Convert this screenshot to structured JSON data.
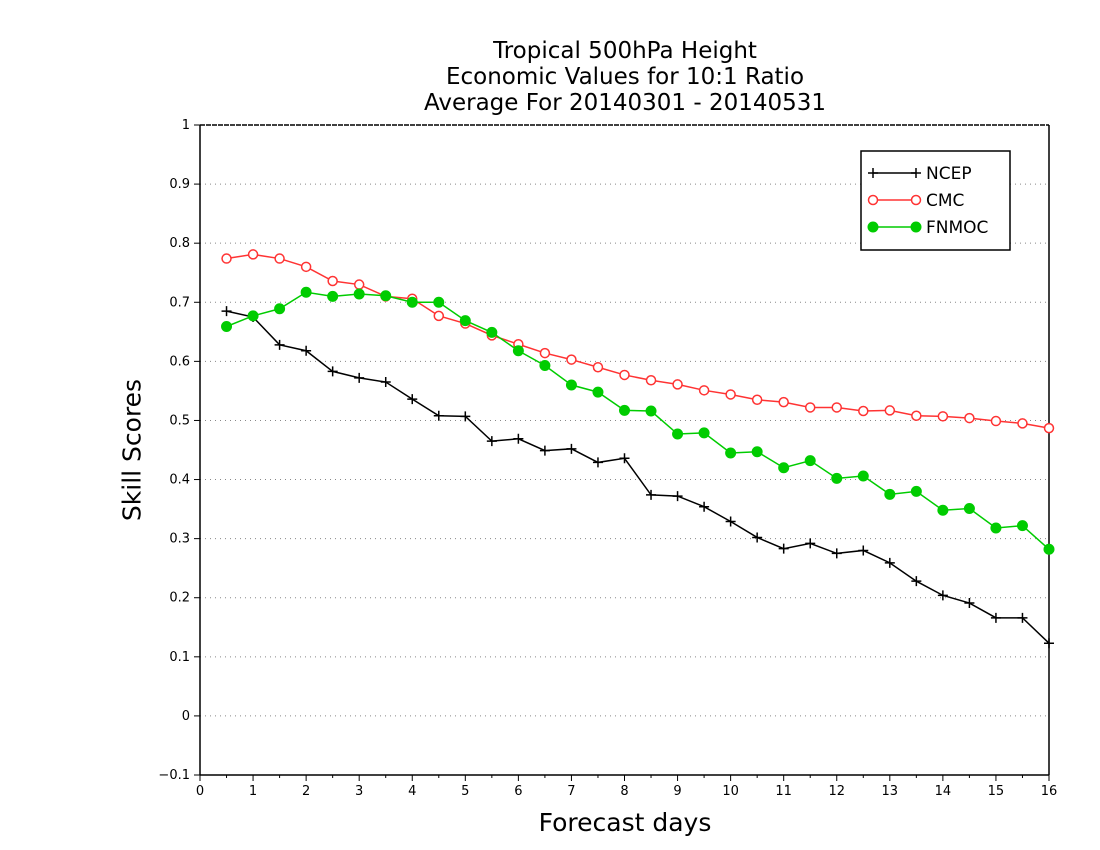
{
  "chart_data": {
    "type": "line",
    "title_lines": [
      "Tropical 500hPa Height",
      "Economic Values for 10:1 Ratio",
      "Average For 20140301 - 20140531"
    ],
    "xlabel": "Forecast days",
    "ylabel": "Skill Scores",
    "xlim": [
      0,
      16
    ],
    "ylim": [
      -0.1,
      1
    ],
    "xticks": [
      "0",
      "1",
      "2",
      "3",
      "4",
      "5",
      "6",
      "7",
      "8",
      "9",
      "10",
      "11",
      "12",
      "13",
      "14",
      "15",
      "16"
    ],
    "yticks": [
      "-0.1",
      "0",
      "0.1",
      "0.2",
      "0.3",
      "0.4",
      "0.5",
      "0.6",
      "0.7",
      "0.8",
      "0.9",
      "1"
    ],
    "grid": "horizontal dotted",
    "legend_position": "top-right",
    "x": [
      0.5,
      1,
      1.5,
      2,
      2.5,
      3,
      3.5,
      4,
      4.5,
      5,
      5.5,
      6,
      6.5,
      7,
      7.5,
      8,
      8.5,
      9,
      9.5,
      10,
      10.5,
      11,
      11.5,
      12,
      12.5,
      13,
      13.5,
      14,
      14.5,
      15,
      15.5,
      16
    ],
    "series": [
      {
        "name": "NCEP",
        "color": "#000000",
        "marker": "plus",
        "values": [
          0.685,
          0.675,
          0.628,
          0.618,
          0.583,
          0.572,
          0.565,
          0.536,
          0.508,
          0.507,
          0.465,
          0.469,
          0.449,
          0.452,
          0.429,
          0.436,
          0.374,
          0.372,
          0.354,
          0.329,
          0.302,
          0.283,
          0.292,
          0.275,
          0.28,
          0.259,
          0.228,
          0.204,
          0.191,
          0.166,
          0.166,
          0.123
        ]
      },
      {
        "name": "CMC",
        "color": "#ff3333",
        "marker": "open-circle",
        "values": [
          0.774,
          0.781,
          0.774,
          0.76,
          0.736,
          0.73,
          0.71,
          0.706,
          0.677,
          0.664,
          0.644,
          0.629,
          0.614,
          0.603,
          0.59,
          0.577,
          0.568,
          0.561,
          0.551,
          0.544,
          0.535,
          0.531,
          0.522,
          0.522,
          0.516,
          0.517,
          0.508,
          0.507,
          0.504,
          0.499,
          0.495,
          0.487
        ]
      },
      {
        "name": "FNMOC",
        "color": "#00cc00",
        "marker": "filled-circle",
        "values": [
          0.659,
          0.677,
          0.689,
          0.717,
          0.71,
          0.714,
          0.711,
          0.7,
          0.7,
          0.669,
          0.649,
          0.618,
          0.593,
          0.56,
          0.548,
          0.517,
          0.516,
          0.477,
          0.479,
          0.445,
          0.447,
          0.42,
          0.432,
          0.402,
          0.406,
          0.375,
          0.38,
          0.348,
          0.351,
          0.318,
          0.322,
          0.282
        ]
      }
    ]
  }
}
